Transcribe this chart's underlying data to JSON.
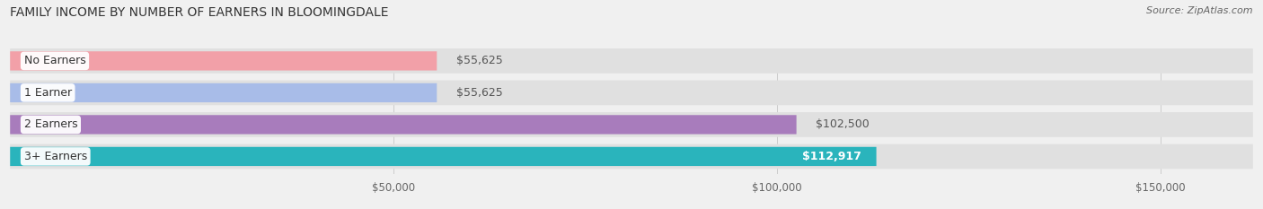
{
  "title": "FAMILY INCOME BY NUMBER OF EARNERS IN BLOOMINGDALE",
  "source": "Source: ZipAtlas.com",
  "categories": [
    "No Earners",
    "1 Earner",
    "2 Earners",
    "3+ Earners"
  ],
  "values": [
    55625,
    55625,
    102500,
    112917
  ],
  "bar_colors": [
    "#f2a0a8",
    "#a8bce8",
    "#a87cbc",
    "#2ab4bc"
  ],
  "label_text_colors": [
    "#555555",
    "#555555",
    "#555555",
    "#555555"
  ],
  "value_labels": [
    "$55,625",
    "$55,625",
    "$102,500",
    "$112,917"
  ],
  "value_label_colors": [
    "#555555",
    "#555555",
    "#555555",
    "#ffffff"
  ],
  "x_ticks": [
    50000,
    100000,
    150000
  ],
  "x_tick_labels": [
    "$50,000",
    "$100,000",
    "$150,000"
  ],
  "xlim_max": 162000,
  "background_color": "#f0f0f0",
  "bar_bg_color": "#e0e0e0",
  "title_fontsize": 10,
  "source_fontsize": 8,
  "label_fontsize": 9,
  "value_fontsize": 9,
  "tick_fontsize": 8.5
}
